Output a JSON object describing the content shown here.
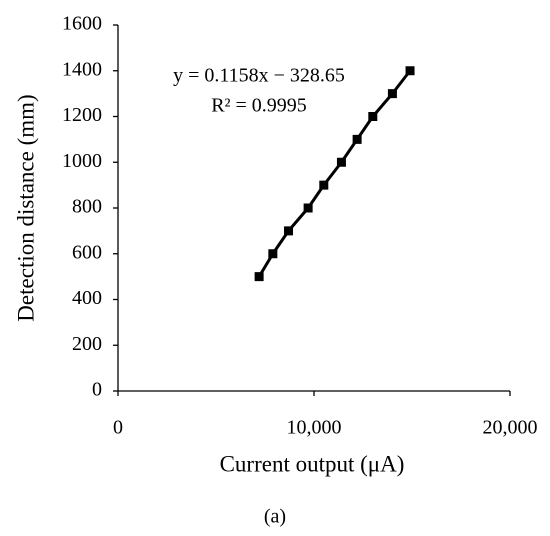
{
  "chart_data": {
    "type": "line",
    "xlabel": "Current output (μA)",
    "ylabel": "Detection distance (mm)",
    "annotations": [
      "y = 0.1158x − 328.65",
      "R² = 0.9995"
    ],
    "caption": "(a)",
    "x": [
      7200,
      7900,
      8700,
      9700,
      10500,
      11400,
      12200,
      13000,
      14000,
      14900
    ],
    "series": [
      {
        "color": "#000000",
        "values": [
          500,
          600,
          700,
          800,
          900,
          1000,
          1100,
          1200,
          1300,
          1400
        ]
      }
    ],
    "xlim": [
      0,
      20000
    ],
    "xticks": [
      0,
      {
        "value": 10000,
        "label": "10,000"
      },
      {
        "value": 20000,
        "label": "20,000"
      }
    ],
    "ylim": [
      0,
      1600
    ],
    "yticks": [
      0,
      200,
      400,
      600,
      800,
      1000,
      1200,
      1400,
      1600
    ],
    "grid": false
  }
}
